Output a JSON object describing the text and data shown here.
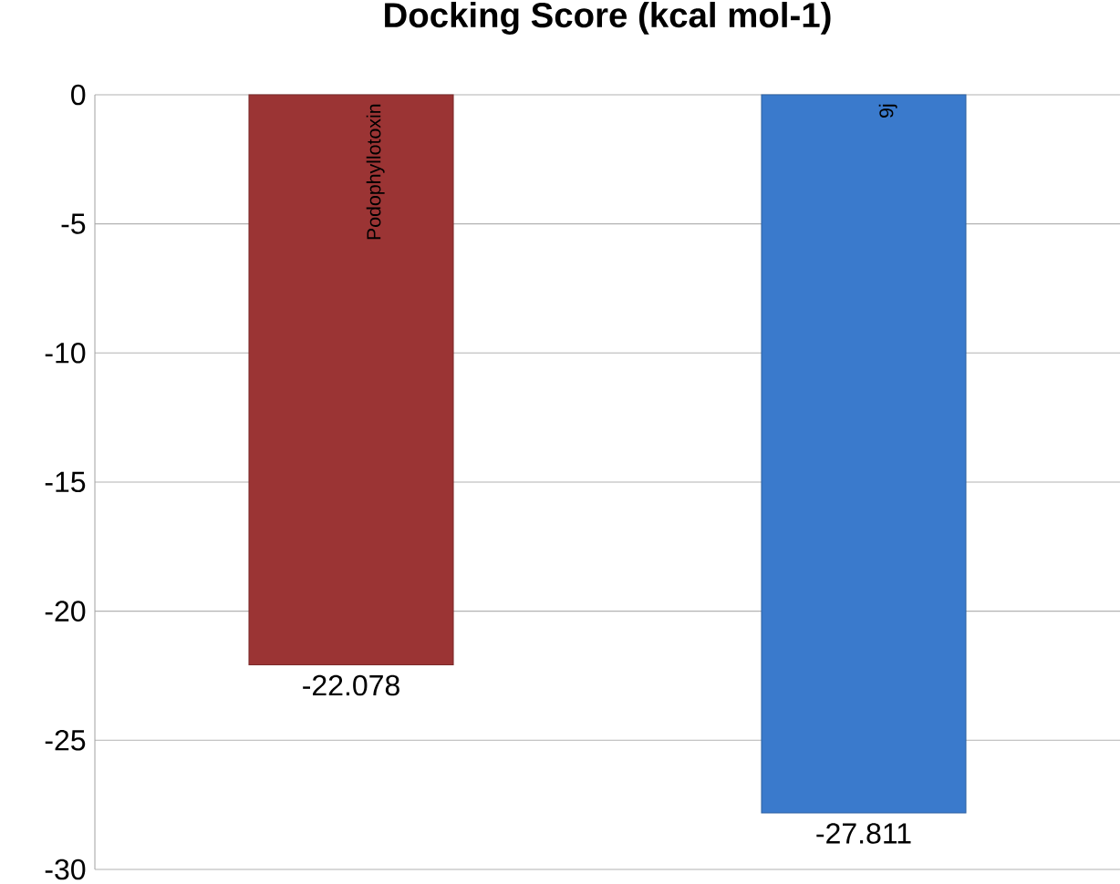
{
  "chart_data": {
    "type": "bar",
    "title": "Docking Score (kcal mol-1)",
    "categories": [
      "Podophyllotoxin",
      "9j"
    ],
    "values": [
      -22.078,
      -27.811
    ],
    "colors": [
      "#9b3434",
      "#3a7acc"
    ],
    "ylim": [
      -30,
      0
    ],
    "yticks": [
      -30,
      -25,
      -20,
      -15,
      -10,
      -5,
      0
    ],
    "grid": "y",
    "data_labels": true
  }
}
